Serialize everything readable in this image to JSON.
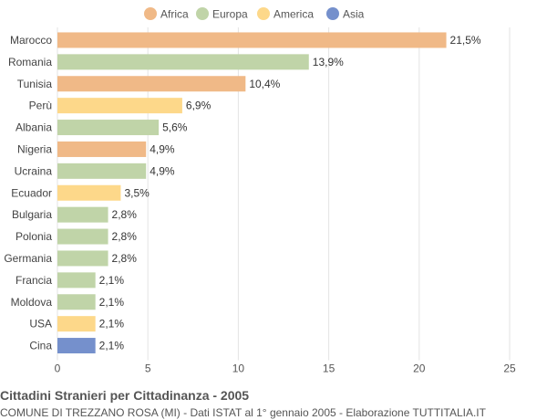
{
  "chart_data": {
    "type": "bar",
    "orientation": "horizontal",
    "title": "Cittadini Stranieri per Cittadinanza - 2005",
    "subtitle": "COMUNE DI TREZZANO ROSA (MI) - Dati ISTAT al 1° gennaio 2005 - Elaborazione TUTTITALIA.IT",
    "xlim": [
      0,
      25
    ],
    "xticks": [
      0,
      5,
      10,
      15,
      20,
      25
    ],
    "grid": true,
    "legend_position": "top",
    "legend": [
      {
        "name": "Africa",
        "color": "#f0b987"
      },
      {
        "name": "Europa",
        "color": "#c0d4a8"
      },
      {
        "name": "America",
        "color": "#fdd88a"
      },
      {
        "name": "Asia",
        "color": "#7590cc"
      }
    ],
    "categories": [
      "Marocco",
      "Romania",
      "Tunisia",
      "Perù",
      "Albania",
      "Nigeria",
      "Ucraina",
      "Ecuador",
      "Bulgaria",
      "Polonia",
      "Germania",
      "Francia",
      "Moldova",
      "USA",
      "Cina"
    ],
    "values": [
      21.5,
      13.9,
      10.4,
      6.9,
      5.6,
      4.9,
      4.9,
      3.5,
      2.8,
      2.8,
      2.8,
      2.1,
      2.1,
      2.1,
      2.1
    ],
    "value_labels": [
      "21,5%",
      "13,9%",
      "10,4%",
      "6,9%",
      "5,6%",
      "4,9%",
      "4,9%",
      "3,5%",
      "2,8%",
      "2,8%",
      "2,8%",
      "2,1%",
      "2,1%",
      "2,1%",
      "2,1%"
    ],
    "groups": [
      "Africa",
      "Europa",
      "Africa",
      "America",
      "Europa",
      "Africa",
      "Europa",
      "America",
      "Europa",
      "Europa",
      "Europa",
      "Europa",
      "Europa",
      "America",
      "Asia"
    ]
  }
}
